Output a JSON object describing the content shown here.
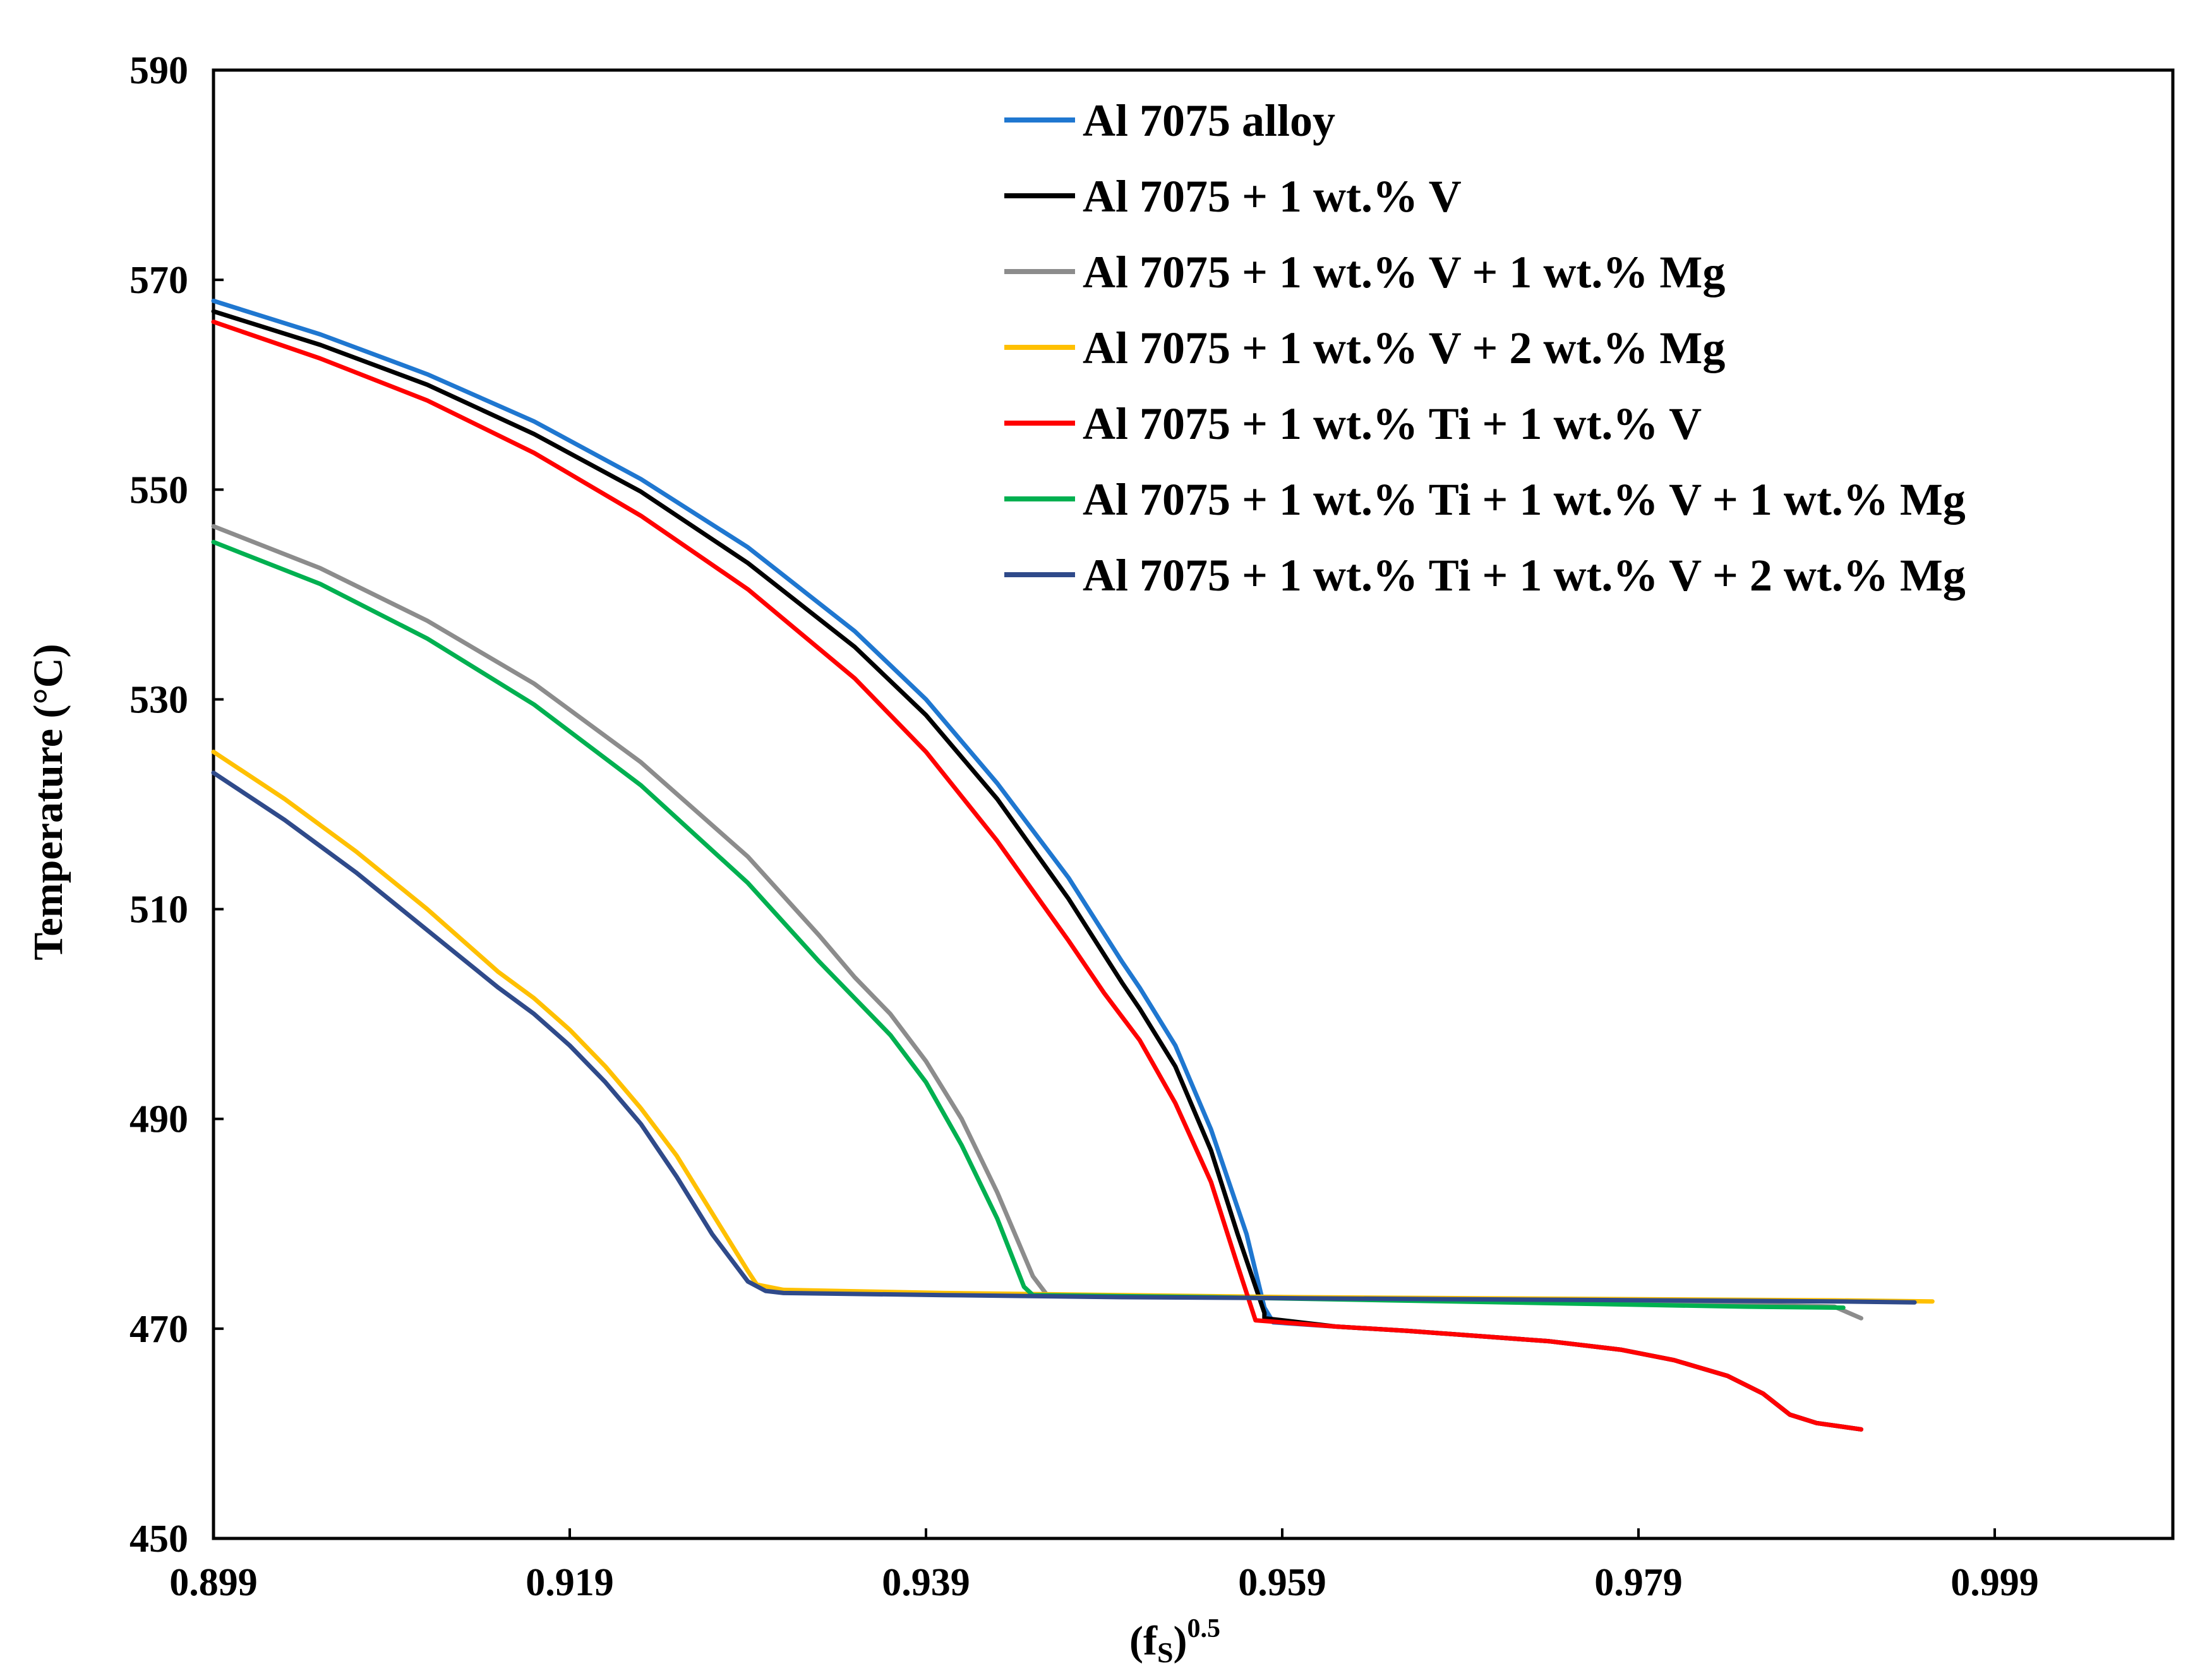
{
  "chart_data": {
    "type": "line",
    "title": "",
    "xlabel_base": "(f",
    "xlabel_sub": "S",
    "xlabel_close": ")",
    "xlabel_sup": "0.5",
    "ylabel": "Temperature  (°C)",
    "xlim": [
      0.899,
      1.009
    ],
    "ylim": [
      450,
      590
    ],
    "xticks": [
      "0.899",
      "0.919",
      "0.939",
      "0.959",
      "0.979",
      "0.999"
    ],
    "xtick_values": [
      0.899,
      0.919,
      0.939,
      0.959,
      0.979,
      0.999
    ],
    "yticks": [
      "450",
      "470",
      "490",
      "510",
      "530",
      "550",
      "570",
      "590"
    ],
    "ytick_values": [
      450,
      470,
      490,
      510,
      530,
      550,
      570,
      590
    ],
    "grid": false,
    "legend_position": "top-right",
    "series": [
      {
        "name": "Al 7075 alloy",
        "color": "#1f77d0",
        "points": [
          [
            0.899,
            568.0
          ],
          [
            0.905,
            564.8
          ],
          [
            0.911,
            561.0
          ],
          [
            0.917,
            556.5
          ],
          [
            0.923,
            551.0
          ],
          [
            0.929,
            544.5
          ],
          [
            0.935,
            536.5
          ],
          [
            0.939,
            530.0
          ],
          [
            0.943,
            522.0
          ],
          [
            0.947,
            513.0
          ],
          [
            0.95,
            505.0
          ],
          [
            0.951,
            502.5
          ],
          [
            0.953,
            497.0
          ],
          [
            0.955,
            489.0
          ],
          [
            0.957,
            479.0
          ],
          [
            0.958,
            472.0
          ],
          [
            0.9585,
            470.6
          ],
          [
            0.962,
            470.2
          ],
          [
            0.966,
            469.8
          ],
          [
            0.97,
            469.3
          ],
          [
            0.974,
            468.8
          ],
          [
            0.978,
            468.0
          ],
          [
            0.981,
            467.0
          ],
          [
            0.984,
            465.5
          ],
          [
            0.986,
            463.8
          ],
          [
            0.9875,
            461.8
          ],
          [
            0.989,
            461.0
          ],
          [
            0.9915,
            460.4
          ]
        ]
      },
      {
        "name": "Al 7075 + 1 wt.% V",
        "color": "#000000",
        "points": [
          [
            0.899,
            567.0
          ],
          [
            0.905,
            563.8
          ],
          [
            0.911,
            560.0
          ],
          [
            0.917,
            555.3
          ],
          [
            0.923,
            549.8
          ],
          [
            0.929,
            543.0
          ],
          [
            0.935,
            535.0
          ],
          [
            0.939,
            528.5
          ],
          [
            0.943,
            520.5
          ],
          [
            0.947,
            511.0
          ],
          [
            0.95,
            503.0
          ],
          [
            0.951,
            500.5
          ],
          [
            0.953,
            495.0
          ],
          [
            0.955,
            487.0
          ],
          [
            0.9565,
            479.0
          ],
          [
            0.958,
            471.5
          ],
          [
            0.958,
            471.0
          ],
          [
            0.962,
            470.2
          ],
          [
            0.966,
            469.8
          ],
          [
            0.97,
            469.3
          ],
          [
            0.974,
            468.8
          ],
          [
            0.978,
            468.0
          ],
          [
            0.981,
            467.0
          ],
          [
            0.984,
            465.5
          ],
          [
            0.986,
            463.8
          ],
          [
            0.9875,
            461.8
          ],
          [
            0.989,
            461.0
          ],
          [
            0.9915,
            460.4
          ]
        ]
      },
      {
        "name": "Al 7075 + 1 wt.% V + 1 wt.% Mg",
        "color": "#8c8c8c",
        "points": [
          [
            0.899,
            546.5
          ],
          [
            0.905,
            542.5
          ],
          [
            0.911,
            537.5
          ],
          [
            0.917,
            531.5
          ],
          [
            0.923,
            524.0
          ],
          [
            0.929,
            515.0
          ],
          [
            0.933,
            507.5
          ],
          [
            0.935,
            503.5
          ],
          [
            0.937,
            500.0
          ],
          [
            0.939,
            495.5
          ],
          [
            0.941,
            490.0
          ],
          [
            0.943,
            483.0
          ],
          [
            0.945,
            475.0
          ],
          [
            0.9458,
            473.2
          ],
          [
            0.955,
            473.0
          ],
          [
            0.965,
            472.8
          ],
          [
            0.975,
            472.6
          ],
          [
            0.985,
            472.3
          ],
          [
            0.99,
            472.1
          ],
          [
            0.9915,
            471.0
          ]
        ]
      },
      {
        "name": "Al 7075 + 1 wt.% V + 2 wt.% Mg",
        "color": "#ffc000",
        "points": [
          [
            0.899,
            525.0
          ],
          [
            0.903,
            520.5
          ],
          [
            0.907,
            515.5
          ],
          [
            0.911,
            510.0
          ],
          [
            0.915,
            504.0
          ],
          [
            0.917,
            501.5
          ],
          [
            0.919,
            498.5
          ],
          [
            0.921,
            495.0
          ],
          [
            0.923,
            491.0
          ],
          [
            0.925,
            486.5
          ],
          [
            0.927,
            481.0
          ],
          [
            0.929,
            475.5
          ],
          [
            0.9295,
            474.2
          ],
          [
            0.931,
            473.7
          ],
          [
            0.94,
            473.4
          ],
          [
            0.95,
            473.2
          ],
          [
            0.96,
            473.0
          ],
          [
            0.97,
            472.9
          ],
          [
            0.98,
            472.8
          ],
          [
            0.99,
            472.7
          ],
          [
            0.9955,
            472.6
          ]
        ]
      },
      {
        "name": "Al 7075 + 1 wt.% Ti + 1 wt.% V",
        "color": "#ff0000",
        "points": [
          [
            0.899,
            566.0
          ],
          [
            0.905,
            562.5
          ],
          [
            0.911,
            558.5
          ],
          [
            0.917,
            553.5
          ],
          [
            0.923,
            547.5
          ],
          [
            0.929,
            540.5
          ],
          [
            0.935,
            532.0
          ],
          [
            0.939,
            525.0
          ],
          [
            0.943,
            516.5
          ],
          [
            0.947,
            507.0
          ],
          [
            0.949,
            502.0
          ],
          [
            0.951,
            497.5
          ],
          [
            0.953,
            491.5
          ],
          [
            0.955,
            484.0
          ],
          [
            0.9565,
            476.0
          ],
          [
            0.9575,
            470.8
          ],
          [
            0.962,
            470.2
          ],
          [
            0.966,
            469.8
          ],
          [
            0.97,
            469.3
          ],
          [
            0.974,
            468.8
          ],
          [
            0.978,
            468.0
          ],
          [
            0.981,
            467.0
          ],
          [
            0.984,
            465.5
          ],
          [
            0.986,
            463.8
          ],
          [
            0.9875,
            461.8
          ],
          [
            0.989,
            461.0
          ],
          [
            0.9915,
            460.4
          ]
        ]
      },
      {
        "name": "Al 7075 + 1 wt.% Ti + 1 wt.% V + 1 wt.% Mg",
        "color": "#00b050",
        "points": [
          [
            0.899,
            545.0
          ],
          [
            0.905,
            541.0
          ],
          [
            0.911,
            535.8
          ],
          [
            0.917,
            529.5
          ],
          [
            0.923,
            521.8
          ],
          [
            0.929,
            512.5
          ],
          [
            0.933,
            505.0
          ],
          [
            0.935,
            501.5
          ],
          [
            0.937,
            498.0
          ],
          [
            0.939,
            493.5
          ],
          [
            0.941,
            487.5
          ],
          [
            0.943,
            480.5
          ],
          [
            0.9445,
            474.0
          ],
          [
            0.945,
            473.2
          ],
          [
            0.955,
            473.0
          ],
          [
            0.965,
            472.7
          ],
          [
            0.975,
            472.4
          ],
          [
            0.985,
            472.1
          ],
          [
            0.9905,
            472.0
          ]
        ]
      },
      {
        "name": "Al 7075 + 1 wt.% Ti + 1 wt.% V + 2 wt.% Mg",
        "color": "#2f4a8a",
        "points": [
          [
            0.899,
            523.0
          ],
          [
            0.903,
            518.5
          ],
          [
            0.907,
            513.5
          ],
          [
            0.911,
            508.0
          ],
          [
            0.915,
            502.5
          ],
          [
            0.917,
            500.0
          ],
          [
            0.919,
            497.0
          ],
          [
            0.921,
            493.5
          ],
          [
            0.923,
            489.5
          ],
          [
            0.925,
            484.5
          ],
          [
            0.927,
            479.0
          ],
          [
            0.929,
            474.5
          ],
          [
            0.93,
            473.6
          ],
          [
            0.931,
            473.4
          ],
          [
            0.94,
            473.2
          ],
          [
            0.95,
            473.0
          ],
          [
            0.96,
            472.9
          ],
          [
            0.97,
            472.8
          ],
          [
            0.98,
            472.7
          ],
          [
            0.99,
            472.6
          ],
          [
            0.9945,
            472.5
          ]
        ]
      }
    ]
  }
}
